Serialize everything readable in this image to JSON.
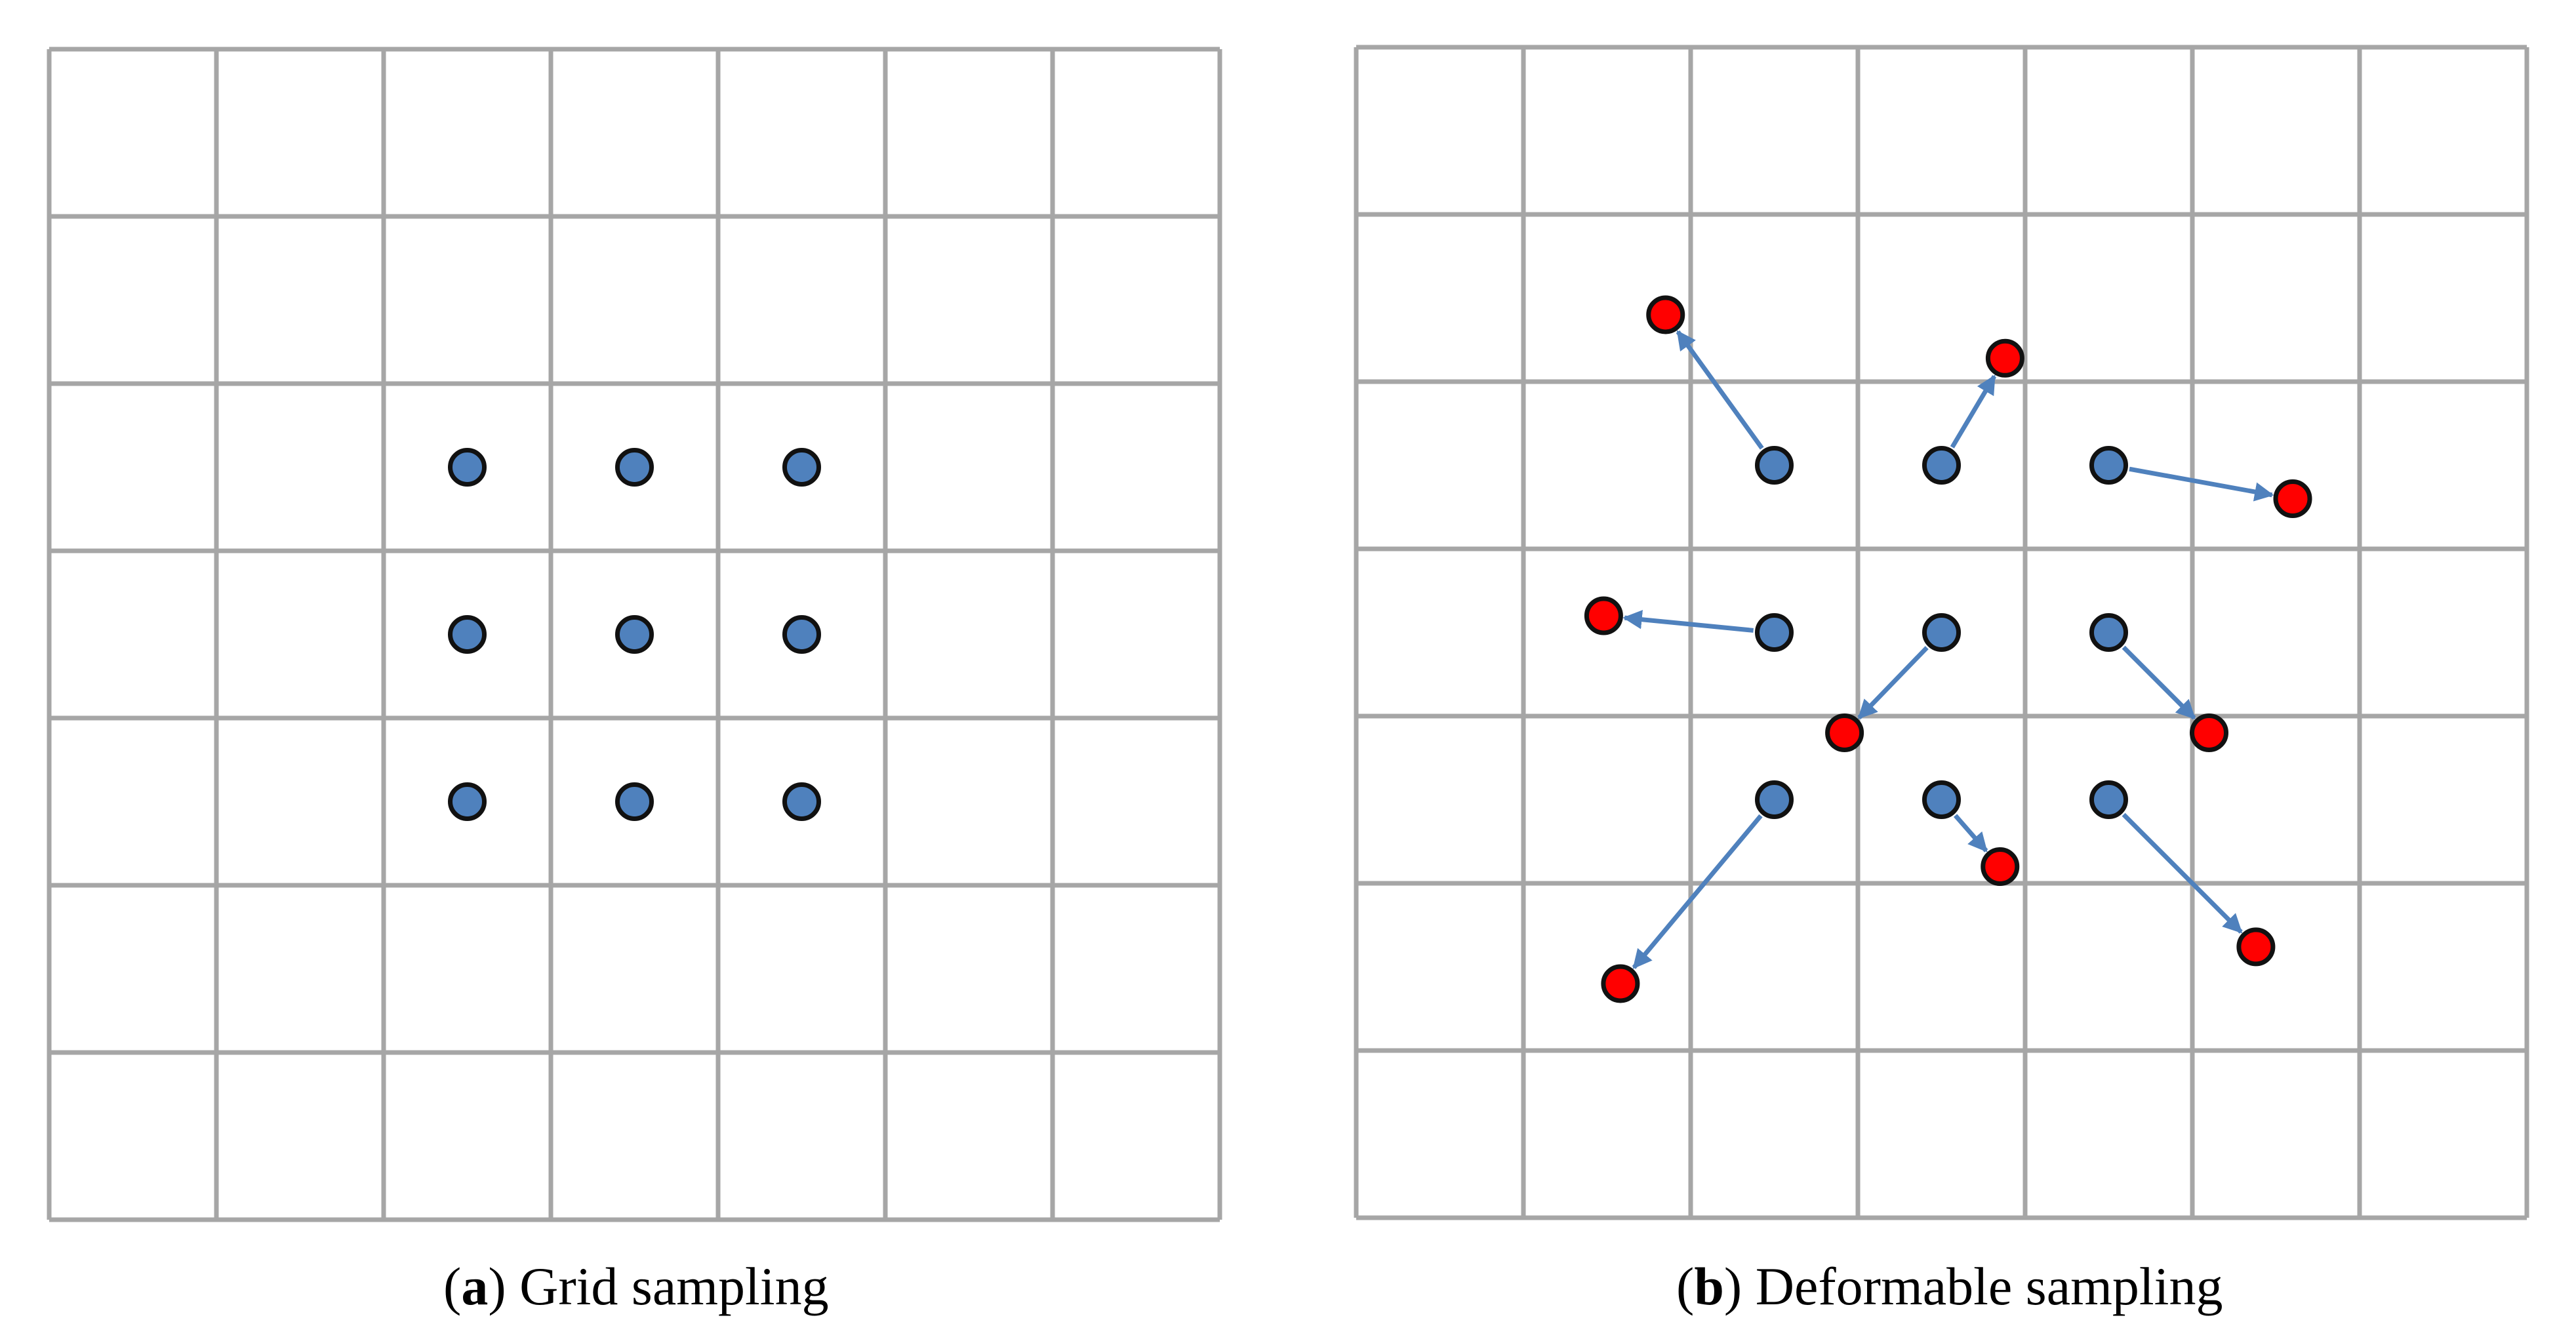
{
  "grid_rows": 7,
  "grid_cols": 7,
  "colors": {
    "grid_line": "#a6a6a6",
    "sample_point": "#4f81bd",
    "offset_point": "#ff0000",
    "arrow": "#4f81bd",
    "point_outline": "#111111"
  },
  "panel_a": {
    "caption_open": "(",
    "caption_letter": "a",
    "caption_text": ") Grid sampling",
    "sample_points": [
      [
        2.5,
        2.5
      ],
      [
        3.5,
        2.5
      ],
      [
        4.5,
        2.5
      ],
      [
        2.5,
        3.5
      ],
      [
        3.5,
        3.5
      ],
      [
        4.5,
        3.5
      ],
      [
        2.5,
        4.5
      ],
      [
        3.5,
        4.5
      ],
      [
        4.5,
        4.5
      ]
    ]
  },
  "panel_b": {
    "caption_open": "(",
    "caption_letter": "b",
    "caption_text": ") Deformable sampling",
    "samples": [
      {
        "from": [
          2.5,
          2.5
        ],
        "to": [
          1.85,
          1.6
        ]
      },
      {
        "from": [
          3.5,
          2.5
        ],
        "to": [
          3.88,
          1.86
        ]
      },
      {
        "from": [
          4.5,
          2.5
        ],
        "to": [
          5.6,
          2.7
        ]
      },
      {
        "from": [
          2.5,
          3.5
        ],
        "to": [
          1.48,
          3.4
        ]
      },
      {
        "from": [
          3.5,
          3.5
        ],
        "to": [
          2.92,
          4.1
        ]
      },
      {
        "from": [
          4.5,
          3.5
        ],
        "to": [
          5.1,
          4.1
        ]
      },
      {
        "from": [
          2.5,
          4.5
        ],
        "to": [
          1.58,
          5.6
        ]
      },
      {
        "from": [
          3.5,
          4.5
        ],
        "to": [
          3.85,
          4.9
        ]
      },
      {
        "from": [
          4.5,
          4.5
        ],
        "to": [
          5.38,
          5.38
        ]
      }
    ]
  }
}
